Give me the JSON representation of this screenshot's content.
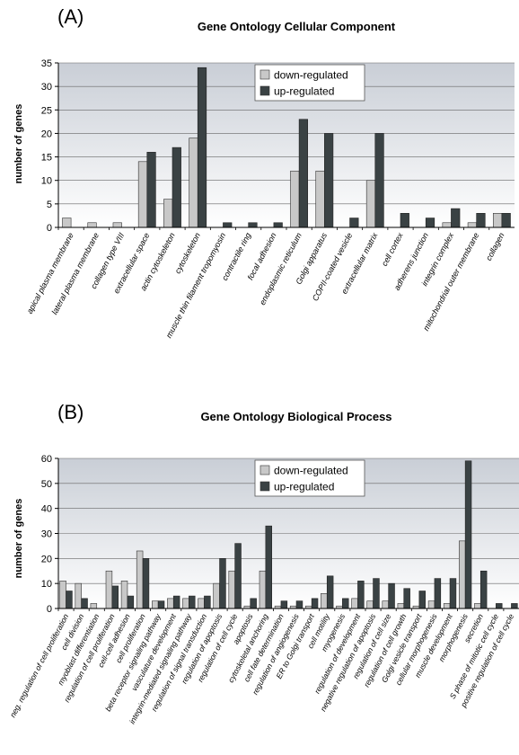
{
  "colors": {
    "down": "#c8c8c8",
    "up": "#3a4244",
    "plot_top": "#c9ced6",
    "plot_bottom": "#ffffff",
    "grid": "#666666"
  },
  "chart_data": [
    {
      "panel": "(A)",
      "type": "bar",
      "title": "Gene Ontology Cellular Component",
      "ylabel": "number of genes",
      "xlabel": "",
      "ylim": [
        0,
        35
      ],
      "yticks": [
        0,
        5,
        10,
        15,
        20,
        25,
        30,
        35
      ],
      "grid": true,
      "legend_position": "top-center",
      "categories": [
        "apical plasma membrane",
        "lateral plasma membrane",
        "collagen type VIII",
        "extracellular space",
        "actin cytoskeleton",
        "cytoskeleton",
        "muscle thin filament tropomyosin",
        "contractile ring",
        "focal adhesion",
        "endoplasmic reticulum",
        "Golgi apparatus",
        "COPII-coated vesicle",
        "extracellular matrix",
        "cell cortex",
        "adherens junction",
        "integrin complex",
        "mitochondrial outer membrane",
        "collagen"
      ],
      "series": [
        {
          "name": "down-regulated",
          "values": [
            2,
            1,
            1,
            14,
            6,
            19,
            0,
            0,
            0,
            12,
            12,
            0,
            10,
            0,
            0,
            1,
            1,
            3
          ]
        },
        {
          "name": "up-regulated",
          "values": [
            0,
            0,
            0,
            16,
            17,
            34,
            1,
            1,
            1,
            23,
            20,
            2,
            20,
            3,
            2,
            4,
            3,
            3
          ]
        }
      ]
    },
    {
      "panel": "(B)",
      "type": "bar",
      "title": "Gene Ontology Biological Process",
      "ylabel": "number of genes",
      "xlabel": "",
      "ylim": [
        0,
        60
      ],
      "yticks": [
        0,
        10,
        20,
        30,
        40,
        50,
        60
      ],
      "grid": true,
      "legend_position": "top-center",
      "categories": [
        "neg. regulation of cell proliferation",
        "cell division",
        "myoblast differentiation",
        "regulation of cell proliferation",
        "cell-cell adhesion",
        "cell proliferation",
        "beta receptor signaling pathway",
        "vasculature development",
        "integrin-mediated signaling pathway",
        "regulation of signal transduction",
        "regulation of apoptosis",
        "regulation of cell cycle",
        "apoptosis",
        "cytoskeletal anchoring",
        "cell fate determination",
        "regulation of angiogenesis",
        "ER to Golgi transport",
        "cell motility",
        "myogenesis",
        "regulation of development",
        "negative regulation of apoptosis",
        "regulation of cell size",
        "regulation of cell growth",
        "Golgi vesicle transport",
        "cellular morphogenesis",
        "muscle development",
        "morphogenesis",
        "secretion",
        "S phase of mitotic cell cycle",
        "positive regulation of cell cycle"
      ],
      "series": [
        {
          "name": "down-regulated",
          "values": [
            11,
            10,
            2,
            15,
            11,
            23,
            3,
            4,
            4,
            4,
            10,
            15,
            1,
            15,
            1,
            1,
            1,
            6,
            1,
            4,
            3,
            3,
            2,
            1,
            3,
            2,
            27,
            2,
            0,
            0
          ]
        },
        {
          "name": "up-regulated",
          "values": [
            7,
            4,
            0,
            9,
            5,
            20,
            3,
            5,
            5,
            5,
            20,
            26,
            4,
            33,
            3,
            3,
            4,
            13,
            4,
            11,
            12,
            10,
            8,
            7,
            12,
            12,
            59,
            15,
            2,
            2
          ]
        }
      ]
    }
  ]
}
